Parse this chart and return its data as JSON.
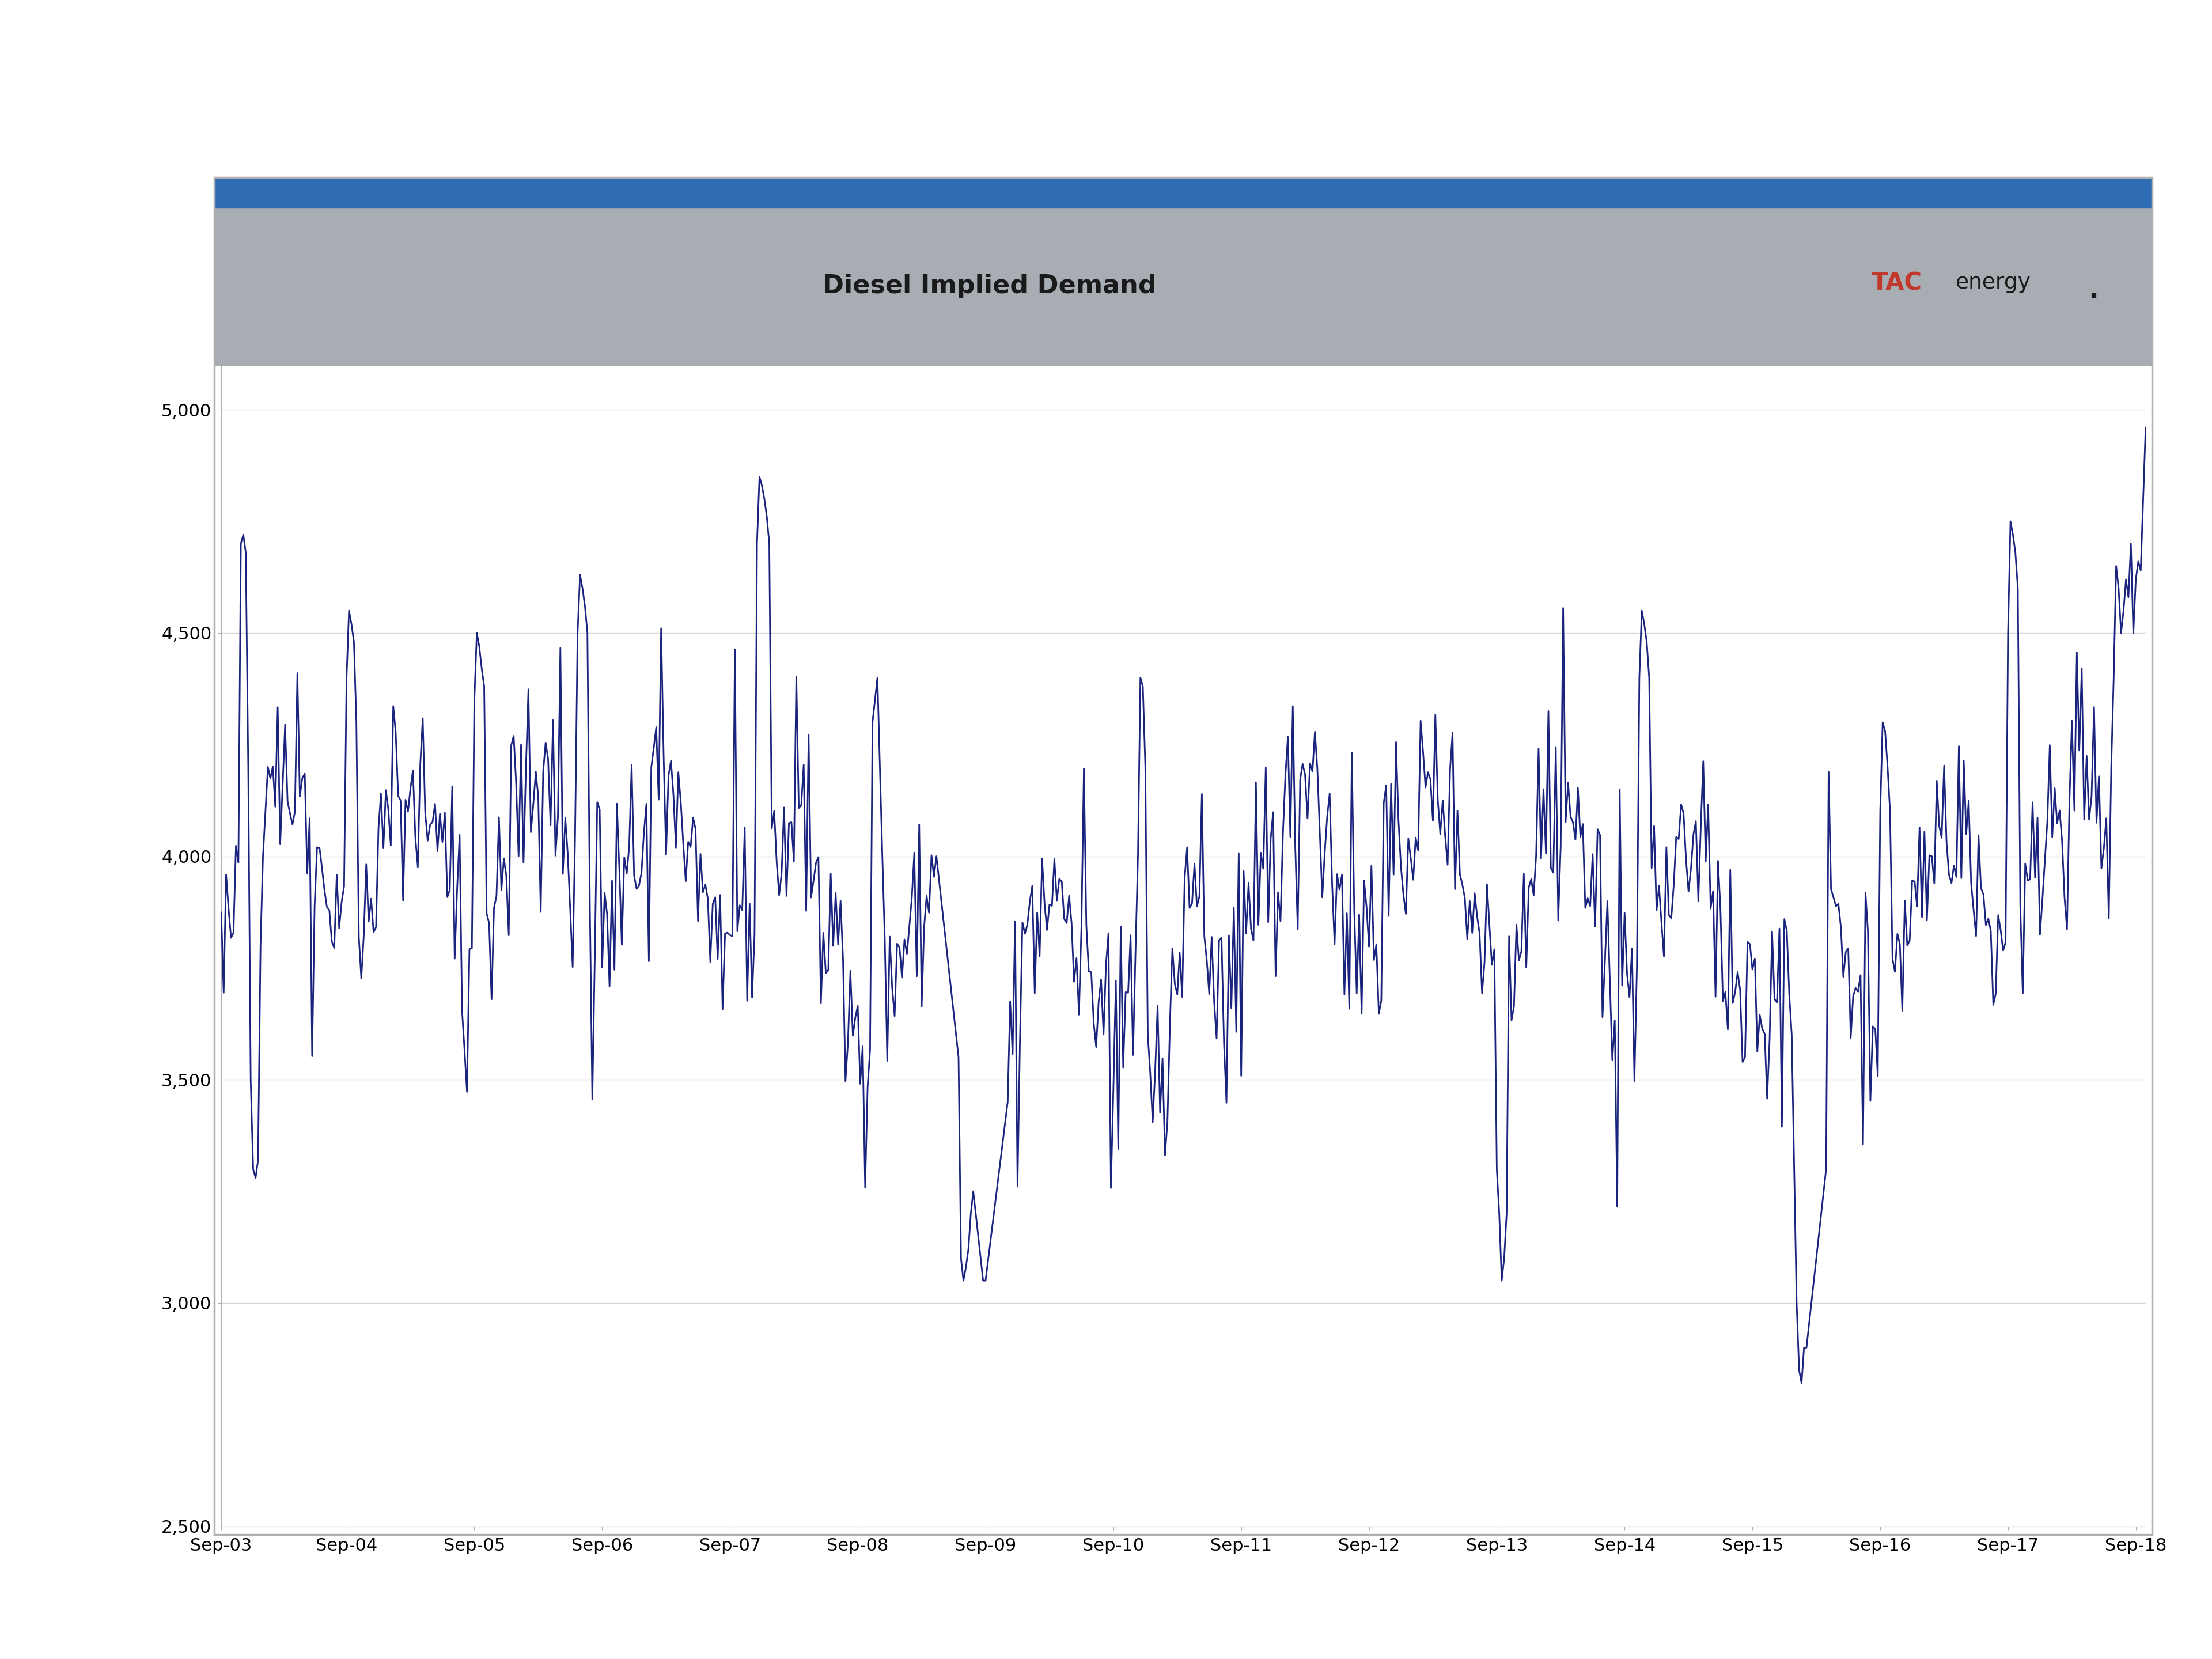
{
  "title": "Diesel Implied Demand",
  "title_fontsize": 32,
  "line_color": "#1a237e",
  "line_width": 2.0,
  "background_color": "#ffffff",
  "header_bg_color": "#a8acb3",
  "stripe_color": "#2f6db5",
  "ylim": [
    2500,
    5100
  ],
  "yticks": [
    2500,
    3000,
    3500,
    4000,
    4500,
    5000
  ],
  "ytick_labels": [
    "2,500",
    "3,000",
    "3,500",
    "4,000",
    "4,500",
    "5,000"
  ],
  "tick_fontsize": 22,
  "logo_tac_color": "#c0392b",
  "logo_energy_color": "#1a1a1a",
  "x_labels": [
    "Sep-03",
    "Sep-04",
    "Sep-05",
    "Sep-06",
    "Sep-07",
    "Sep-08",
    "Sep-09",
    "Sep-10",
    "Sep-11",
    "Sep-12",
    "Sep-13",
    "Sep-14",
    "Sep-15",
    "Sep-16",
    "Sep-17",
    "Sep-18"
  ],
  "border_color": "#b0b0b0",
  "grid_color": "#d8d8d8"
}
